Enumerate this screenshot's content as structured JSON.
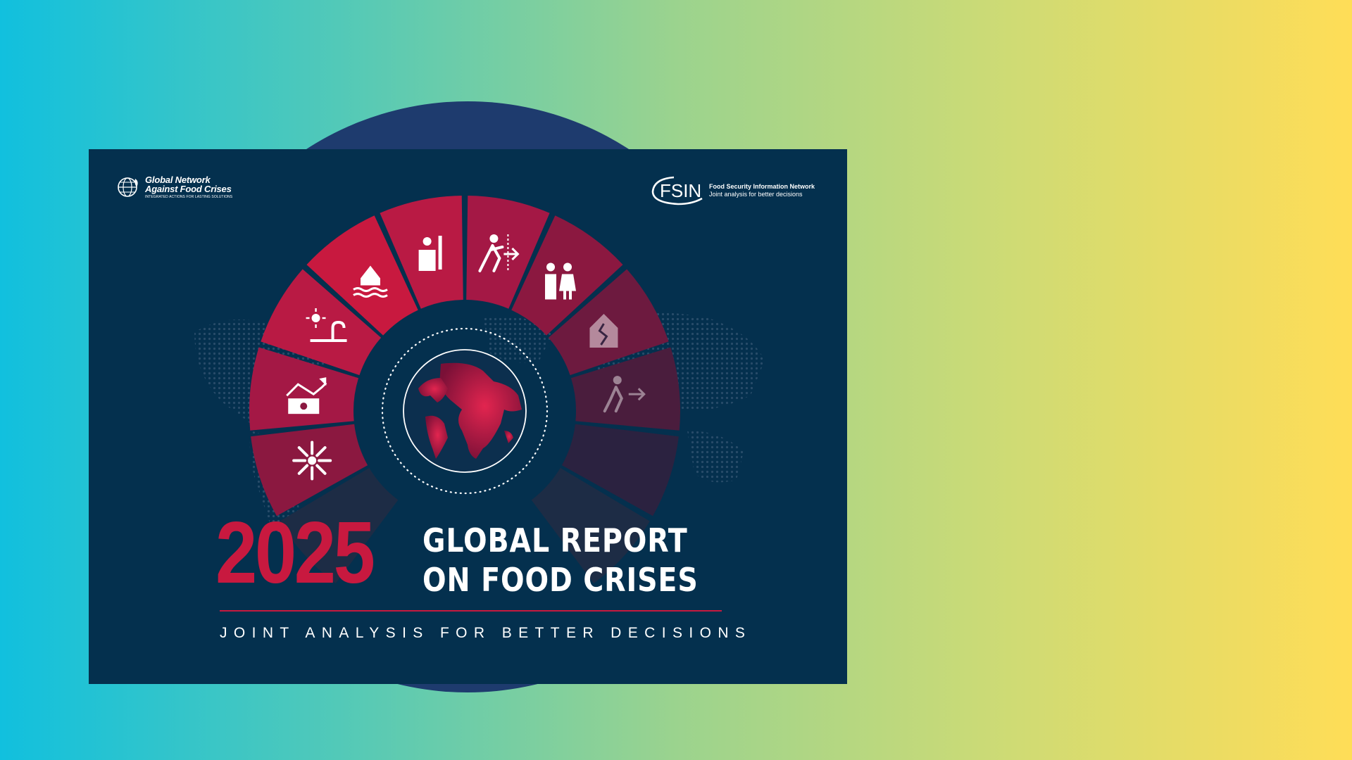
{
  "report": {
    "year": "2025",
    "title_line1": "GLOBAL REPORT",
    "title_line2": "ON FOOD CRISES",
    "subtitle": "JOINT ANALYSIS FOR BETTER DECISIONS"
  },
  "logos": {
    "gnafc": {
      "name_line1": "Global Network",
      "name_line2": "Against Food Crises",
      "tagline": "INTEGRATED ACTIONS FOR LASTING SOLUTIONS"
    },
    "fsin": {
      "acronym": "FSIN",
      "name": "Food Security Information Network",
      "tagline": "Joint analysis for better decisions"
    }
  },
  "wheel_icons": [
    "burst-icon",
    "rising-prices-icon",
    "drought-icon",
    "flood-icon",
    "conflict-icon",
    "displacement-icon",
    "children-icon",
    "earthquake-icon",
    "migration-icon"
  ],
  "colors": {
    "background_left": "#11c0de",
    "background_right": "#ffdd57",
    "circle": "#1e3b6e",
    "cover": "#04304e",
    "accent_red": "#c8193f"
  }
}
